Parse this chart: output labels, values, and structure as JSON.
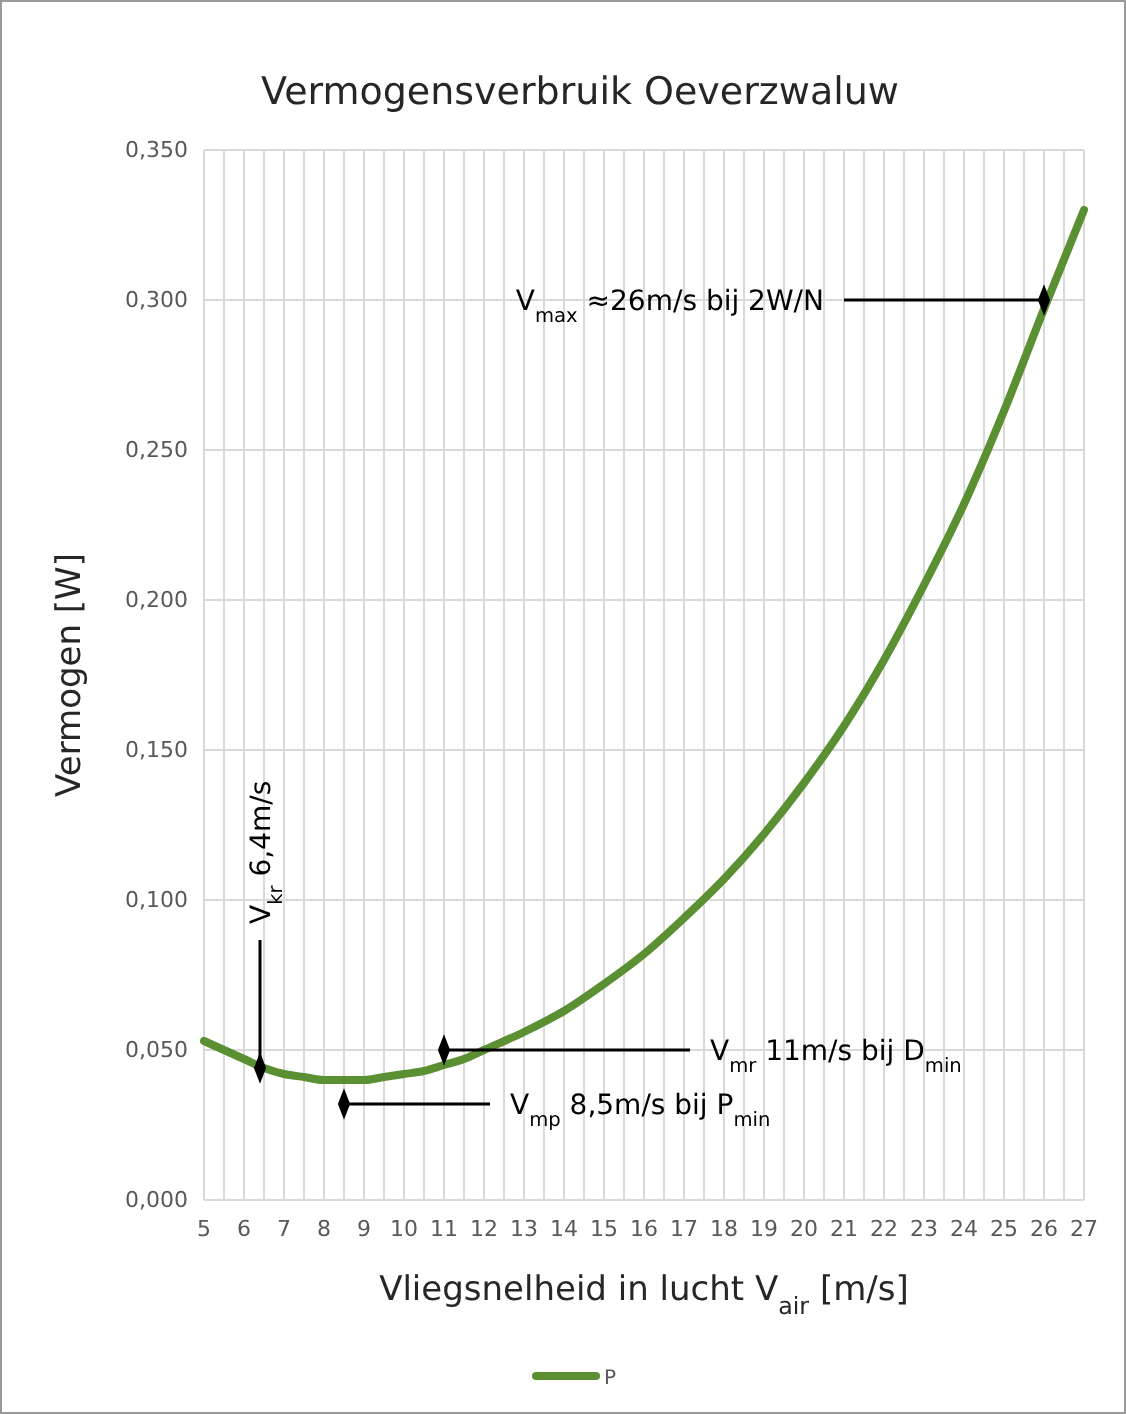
{
  "chart_data": {
    "type": "line",
    "title": "Vermogensverbruik Oeverzwaluw",
    "xlabel": "Vliegsnelheid in lucht V$_{air}$ [m/s]",
    "ylabel": "Vermogen [W]",
    "xlim": [
      5,
      27
    ],
    "xticks": [
      5,
      {
        "value": 5.5,
        "label": null
      },
      6,
      {
        "value": 6.5,
        "label": null
      },
      7,
      {
        "value": 7.5,
        "label": null
      },
      8,
      {
        "value": 8.5,
        "label": null
      },
      9,
      {
        "value": 9.5,
        "label": null
      },
      10,
      {
        "value": 10.5,
        "label": null
      },
      11,
      {
        "value": 11.5,
        "label": null
      },
      12,
      {
        "value": 12.5,
        "label": null
      },
      13,
      {
        "value": 13.5,
        "label": null
      },
      14,
      {
        "value": 14.5,
        "label": null
      },
      15,
      {
        "value": 15.5,
        "label": null
      },
      16,
      {
        "value": 16.5,
        "label": null
      },
      17,
      {
        "value": 17.5,
        "label": null
      },
      18,
      {
        "value": 18.5,
        "label": null
      },
      19,
      {
        "value": 19.5,
        "label": null
      },
      20,
      {
        "value": 20.5,
        "label": null
      },
      21,
      {
        "value": 21.5,
        "label": null
      },
      22,
      {
        "value": 22.5,
        "label": null
      },
      23,
      {
        "value": 23.5,
        "label": null
      },
      24,
      {
        "value": 24.5,
        "label": null
      },
      25,
      {
        "value": 25.5,
        "label": null
      },
      26,
      {
        "value": 26.5,
        "label": null
      },
      27
    ],
    "ylim": [
      0,
      0.35
    ],
    "yticks": [
      {
        "value": 0,
        "label": "0,000"
      },
      {
        "value": 0.05,
        "label": "0,050"
      },
      {
        "value": 0.1,
        "label": "0,100"
      },
      {
        "value": 0.15,
        "label": "0,150"
      },
      {
        "value": 0.2,
        "label": "0,200"
      },
      {
        "value": 0.25,
        "label": "0,250"
      },
      {
        "value": 0.3,
        "label": "0,300"
      },
      {
        "value": 0.35,
        "label": "0,350"
      }
    ],
    "grid": true,
    "legend": "bottom",
    "marker": "none",
    "line_style": "solid",
    "x": [
      5,
      5.5,
      6,
      6.5,
      7,
      7.5,
      8,
      8.5,
      9,
      9.5,
      10,
      10.5,
      11,
      11.5,
      12,
      13,
      14,
      15,
      16,
      17,
      18,
      19,
      20,
      21,
      22,
      23,
      24,
      25,
      26,
      27
    ],
    "series": [
      {
        "name": "P",
        "color": "#5a8f32",
        "values": [
          0.053,
          0.05,
          0.047,
          0.044,
          0.042,
          0.041,
          0.04,
          0.04,
          0.04,
          0.041,
          0.042,
          0.043,
          0.045,
          0.047,
          0.05,
          0.056,
          0.063,
          0.072,
          0.082,
          0.094,
          0.107,
          0.122,
          0.139,
          0.158,
          0.18,
          0.205,
          0.232,
          0.263,
          0.297,
          0.33
        ]
      },
      {
        "type": "scatter",
        "marker": "diamond",
        "color": "#000000",
        "x": [
          26,
          6.4,
          11,
          8.5
        ],
        "values": [
          0.3,
          0.044,
          0.05,
          0.032
        ]
      }
    ],
    "annotations": [
      {
        "text": "V$_{max}$ ≈26m/s bij 2W/N",
        "x": 26,
        "y": 0.3
      },
      {
        "text": "V$_{kr}$ 6,4m/s",
        "x": 6.4,
        "y": 0.044
      },
      {
        "text": "V$_{mr}$ 11m/s bij D$_{min}$",
        "x": 11,
        "y": 0.05
      },
      {
        "text": "V$_{mp}$ 8,5m/s bij P$_{min}$",
        "x": 8.5,
        "y": 0.032
      }
    ]
  }
}
